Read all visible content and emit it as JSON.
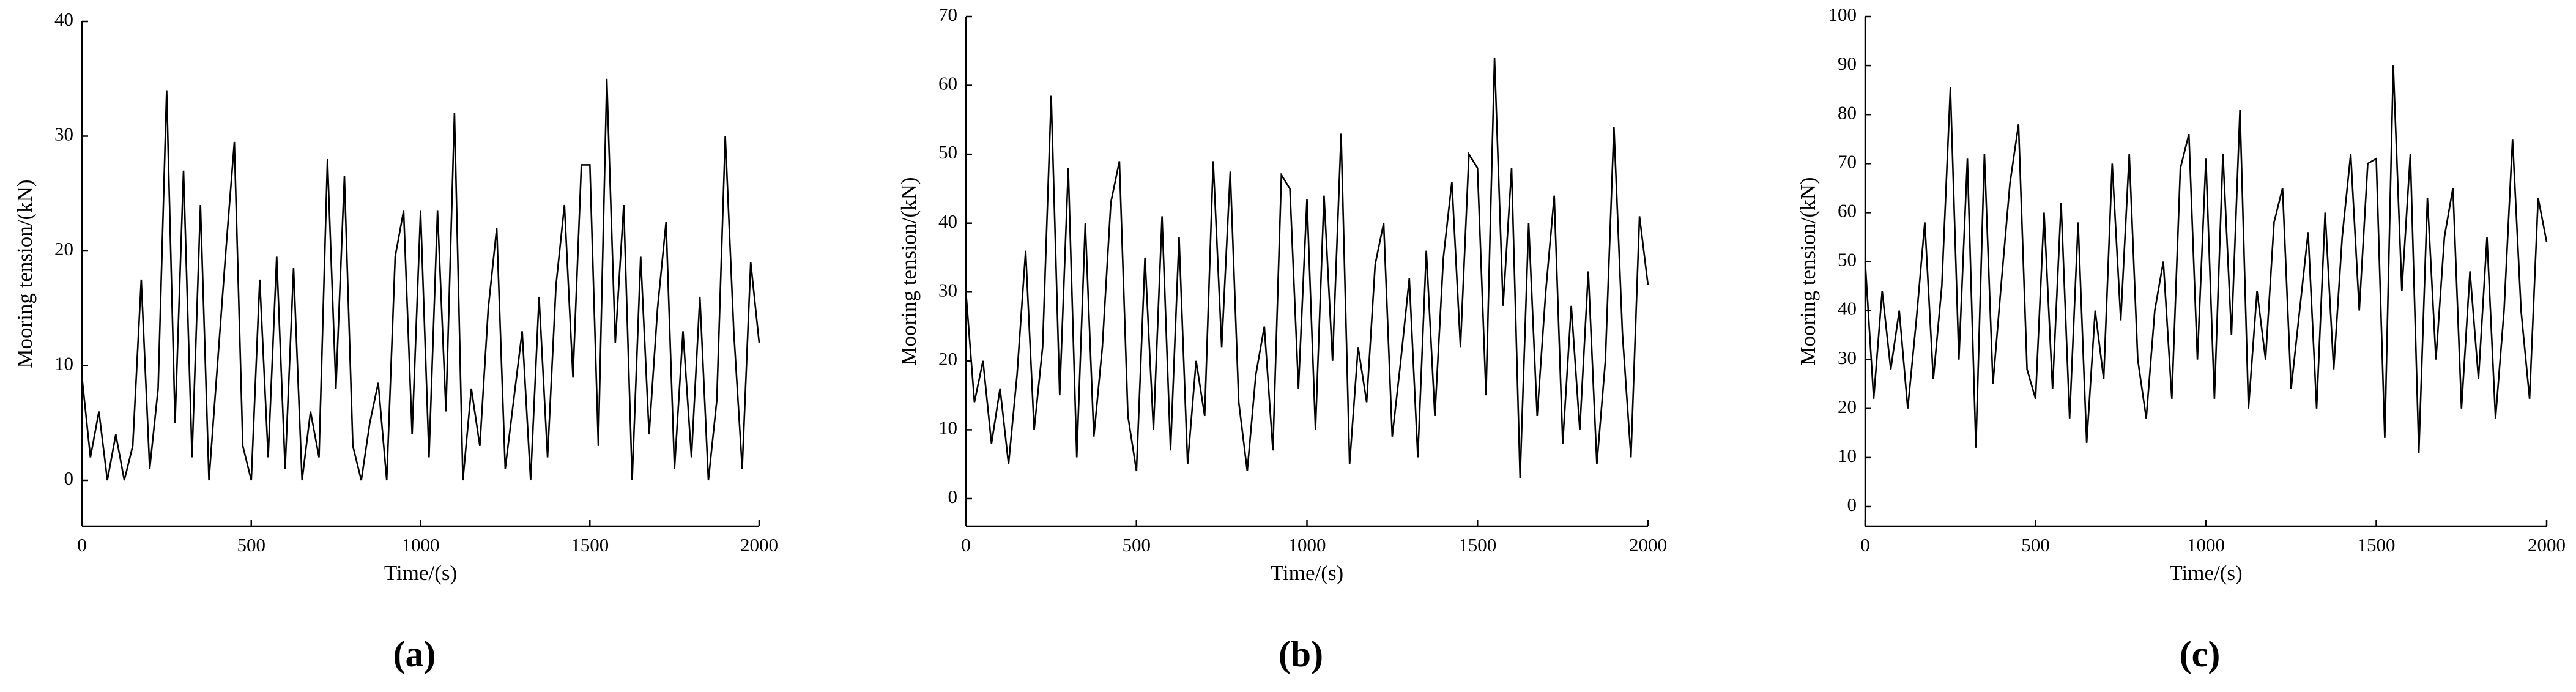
{
  "chart_data": [
    {
      "type": "line",
      "panel_label": "(a)",
      "x_label": "Time/(s)",
      "y_label": "Mooring tension/(kN)",
      "color": "#000000",
      "xlim": [
        0,
        2000
      ],
      "xticks": [
        0,
        500,
        1000,
        1500,
        2000
      ],
      "ylim": [
        -4,
        40
      ],
      "yticks": [
        0,
        10,
        20,
        30,
        40
      ],
      "x": [
        0,
        25,
        50,
        75,
        100,
        125,
        150,
        175,
        200,
        225,
        250,
        275,
        300,
        325,
        350,
        375,
        400,
        425,
        450,
        475,
        500,
        525,
        550,
        575,
        600,
        625,
        650,
        675,
        700,
        725,
        750,
        775,
        800,
        825,
        850,
        875,
        900,
        925,
        950,
        975,
        1000,
        1025,
        1050,
        1075,
        1100,
        1125,
        1150,
        1175,
        1200,
        1225,
        1250,
        1275,
        1300,
        1325,
        1350,
        1375,
        1400,
        1425,
        1450,
        1475,
        1500,
        1525,
        1550,
        1575,
        1600,
        1625,
        1650,
        1675,
        1700,
        1725,
        1750,
        1775,
        1800,
        1825,
        1850,
        1875,
        1900,
        1925,
        1950,
        1975,
        2000
      ],
      "values": [
        9,
        2,
        6,
        0,
        4,
        0,
        3,
        17.5,
        1,
        8,
        34,
        5,
        27,
        2,
        24,
        0,
        10,
        20,
        29.5,
        3,
        0,
        17.5,
        2,
        19.5,
        1,
        18.5,
        0,
        6,
        2,
        28,
        8,
        26.5,
        3,
        0,
        5,
        8.5,
        0,
        19.5,
        23.5,
        4,
        23.5,
        2,
        23.5,
        6,
        32,
        0,
        8,
        3,
        15,
        22,
        1,
        7,
        13,
        0,
        16,
        2,
        17,
        24,
        9,
        27.5,
        27.5,
        3,
        35,
        12,
        24,
        0,
        19.5,
        4,
        15,
        22.5,
        1,
        13,
        2,
        16,
        0,
        7,
        30,
        13,
        1,
        19,
        12
      ]
    },
    {
      "type": "line",
      "panel_label": "(b)",
      "x_label": "Time/(s)",
      "y_label": "Mooring tension/(kN)",
      "color": "#000000",
      "xlim": [
        0,
        2000
      ],
      "xticks": [
        0,
        500,
        1000,
        1500,
        2000
      ],
      "ylim": [
        -4,
        70
      ],
      "yticks": [
        0,
        10,
        20,
        30,
        40,
        50,
        60,
        70
      ],
      "x": [
        0,
        25,
        50,
        75,
        100,
        125,
        150,
        175,
        200,
        225,
        250,
        275,
        300,
        325,
        350,
        375,
        400,
        425,
        450,
        475,
        500,
        525,
        550,
        575,
        600,
        625,
        650,
        675,
        700,
        725,
        750,
        775,
        800,
        825,
        850,
        875,
        900,
        925,
        950,
        975,
        1000,
        1025,
        1050,
        1075,
        1100,
        1125,
        1150,
        1175,
        1200,
        1225,
        1250,
        1275,
        1300,
        1325,
        1350,
        1375,
        1400,
        1425,
        1450,
        1475,
        1500,
        1525,
        1550,
        1575,
        1600,
        1625,
        1650,
        1675,
        1700,
        1725,
        1750,
        1775,
        1800,
        1825,
        1850,
        1875,
        1900,
        1925,
        1950,
        1975,
        2000
      ],
      "values": [
        30,
        14,
        20,
        8,
        16,
        5,
        18,
        36,
        10,
        22,
        58.5,
        15,
        48,
        6,
        40,
        9,
        22,
        43,
        49,
        12,
        4,
        35,
        10,
        41,
        7,
        38,
        5,
        20,
        12,
        49,
        22,
        47.5,
        14,
        4,
        18,
        25,
        7,
        47,
        45,
        16,
        43.5,
        10,
        44,
        20,
        53,
        5,
        22,
        14,
        34,
        40,
        9,
        20,
        32,
        6,
        36,
        12,
        35,
        46,
        22,
        50,
        48,
        15,
        64,
        28,
        48,
        3,
        40,
        12,
        30,
        44,
        8,
        28,
        10,
        33,
        5,
        20,
        54,
        24,
        6,
        41,
        31
      ]
    },
    {
      "type": "line",
      "panel_label": "(c)",
      "x_label": "Time/(s)",
      "y_label": "Mooring tension/(kN)",
      "color": "#000000",
      "xlim": [
        0,
        2000
      ],
      "xticks": [
        0,
        500,
        1000,
        1500,
        2000
      ],
      "ylim": [
        -4,
        100
      ],
      "yticks": [
        0,
        10,
        20,
        30,
        40,
        50,
        60,
        70,
        80,
        90,
        100
      ],
      "x": [
        0,
        25,
        50,
        75,
        100,
        125,
        150,
        175,
        200,
        225,
        250,
        275,
        300,
        325,
        350,
        375,
        400,
        425,
        450,
        475,
        500,
        525,
        550,
        575,
        600,
        625,
        650,
        675,
        700,
        725,
        750,
        775,
        800,
        825,
        850,
        875,
        900,
        925,
        950,
        975,
        1000,
        1025,
        1050,
        1075,
        1100,
        1125,
        1150,
        1175,
        1200,
        1225,
        1250,
        1275,
        1300,
        1325,
        1350,
        1375,
        1400,
        1425,
        1450,
        1475,
        1500,
        1525,
        1550,
        1575,
        1600,
        1625,
        1650,
        1675,
        1700,
        1725,
        1750,
        1775,
        1800,
        1825,
        1850,
        1875,
        1900,
        1925,
        1950,
        1975,
        2000
      ],
      "values": [
        50,
        22,
        44,
        28,
        40,
        20,
        38,
        58,
        26,
        45,
        85.5,
        30,
        71,
        12,
        72,
        25,
        46,
        66,
        78,
        28,
        22,
        60,
        24,
        62,
        18,
        58,
        13,
        40,
        26,
        70,
        38,
        72,
        30,
        18,
        40,
        50,
        22,
        69,
        76,
        30,
        71,
        22,
        72,
        35,
        81,
        20,
        44,
        30,
        58,
        65,
        24,
        40,
        56,
        20,
        60,
        28,
        55,
        72,
        40,
        70,
        71,
        14,
        90,
        44,
        72,
        11,
        63,
        30,
        55,
        65,
        20,
        48,
        26,
        55,
        18,
        40,
        75,
        40,
        22,
        63,
        54
      ]
    }
  ]
}
